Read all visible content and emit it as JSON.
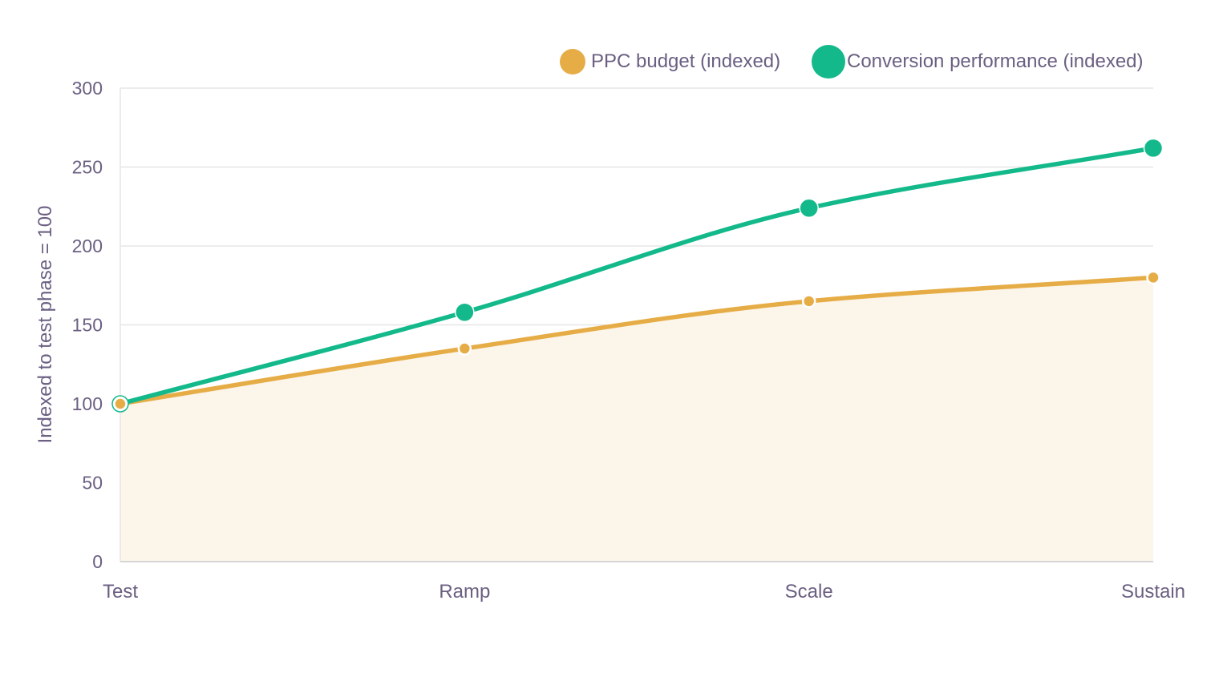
{
  "chart_data": {
    "type": "line",
    "categories": [
      "Test",
      "Ramp",
      "Scale",
      "Sustain"
    ],
    "ylabel": "Indexed to test phase = 100",
    "ylim": [
      0,
      300
    ],
    "yticks": [
      0,
      50,
      100,
      150,
      200,
      250,
      300
    ],
    "grid": true,
    "legend_position": "top-right",
    "series": [
      {
        "name": "PPC budget (indexed)",
        "values": [
          100,
          135,
          165,
          180
        ],
        "color": "#e6ad47",
        "area": true,
        "area_color": "#fcf5ea"
      },
      {
        "name": "Conversion performance (indexed)",
        "values": [
          100,
          158,
          224,
          262
        ],
        "color": "#13b98a",
        "area": false
      }
    ]
  }
}
